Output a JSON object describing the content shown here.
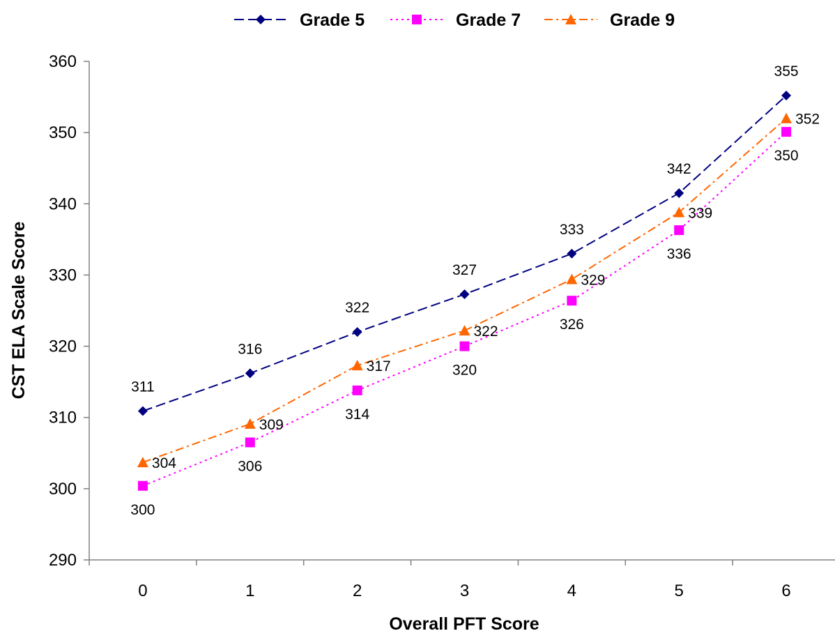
{
  "chart_data": {
    "type": "line",
    "xlabel": "Overall PFT Score",
    "ylabel": "CST ELA Scale Score",
    "x": [
      0,
      1,
      2,
      3,
      4,
      5,
      6
    ],
    "ylim": [
      290,
      360
    ],
    "yticks": [
      290,
      300,
      310,
      320,
      330,
      340,
      350,
      360
    ],
    "grid": false,
    "legend_position": "top",
    "series": [
      {
        "name": "Grade 5",
        "color": "#000080",
        "dash": "dashed",
        "marker": "diamond",
        "values": [
          310.9,
          316.2,
          322.0,
          327.3,
          333.0,
          341.5,
          355.2
        ],
        "labels": [
          "311",
          "316",
          "322",
          "327",
          "333",
          "342",
          "355"
        ],
        "label_position": "above"
      },
      {
        "name": "Grade 7",
        "color": "#FF00FF",
        "dash": "dotted",
        "marker": "square",
        "values": [
          300.4,
          306.5,
          313.8,
          320.0,
          326.4,
          336.3,
          350.1
        ],
        "labels": [
          "300",
          "306",
          "314",
          "320",
          "326",
          "336",
          "350"
        ],
        "label_position": "below"
      },
      {
        "name": "Grade 9",
        "color": "#FF6600",
        "dash": "dashdot",
        "marker": "triangle",
        "values": [
          303.7,
          309.1,
          317.3,
          322.2,
          329.4,
          338.8,
          352.0
        ],
        "labels": [
          "304",
          "309",
          "317",
          "322",
          "329",
          "339",
          "352"
        ],
        "label_position": "right"
      }
    ]
  }
}
